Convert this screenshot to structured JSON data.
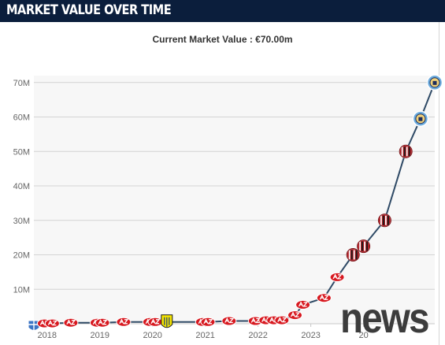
{
  "header": {
    "title": "MARKET VALUE OVER TIME"
  },
  "colors": {
    "header_bg": "#0b1e3c",
    "line": "#2f4a66",
    "plot_bg": "#f7f7f7",
    "grid": "#d4d4d4",
    "az_red": "#d71920",
    "milan_red": "#b01c23",
    "city_blue": "#6cabdd"
  },
  "watermark": "news",
  "chart_data": {
    "type": "line",
    "title": "Current Market Value : €70.00m",
    "xlabel": "",
    "ylabel": "",
    "x_tick_labels": [
      "2018",
      "2019",
      "2020",
      "2021",
      "2022",
      "2023",
      "20"
    ],
    "x_tick_years": [
      2018,
      2019,
      2020,
      2021,
      2022,
      2023,
      2024
    ],
    "y_tick_labels": [
      "10M",
      "20M",
      "30M",
      "40M",
      "50M",
      "60M",
      "70M"
    ],
    "y_ticks": [
      10,
      20,
      30,
      40,
      50,
      60,
      70
    ],
    "ylim": [
      0,
      72
    ],
    "xlim": [
      2017.75,
      2025.1
    ],
    "grid": true,
    "series": [
      {
        "values": [
          {
            "x": 2017.75,
            "y": 0.0,
            "club": "pec-zwolle"
          },
          {
            "x": 2017.95,
            "y": 0.1,
            "club": "az-alkmaar"
          },
          {
            "x": 2018.1,
            "y": 0.1,
            "club": "az-alkmaar"
          },
          {
            "x": 2018.45,
            "y": 0.3,
            "club": "az-alkmaar"
          },
          {
            "x": 2018.95,
            "y": 0.3,
            "club": "az-alkmaar"
          },
          {
            "x": 2019.05,
            "y": 0.3,
            "club": "az-alkmaar"
          },
          {
            "x": 2019.45,
            "y": 0.5,
            "club": "az-alkmaar"
          },
          {
            "x": 2019.95,
            "y": 0.5,
            "club": "az-alkmaar"
          },
          {
            "x": 2020.05,
            "y": 0.5,
            "club": "az-alkmaar"
          },
          {
            "x": 2020.27,
            "y": 0.5,
            "club": "rkc-waalwijk"
          },
          {
            "x": 2020.95,
            "y": 0.5,
            "club": "az-alkmaar"
          },
          {
            "x": 2021.05,
            "y": 0.5,
            "club": "az-alkmaar"
          },
          {
            "x": 2021.45,
            "y": 0.8,
            "club": "az-alkmaar"
          },
          {
            "x": 2021.95,
            "y": 0.8,
            "club": "az-alkmaar"
          },
          {
            "x": 2022.15,
            "y": 1.0,
            "club": "az-alkmaar"
          },
          {
            "x": 2022.3,
            "y": 1.0,
            "club": "az-alkmaar"
          },
          {
            "x": 2022.45,
            "y": 1.0,
            "club": "az-alkmaar"
          },
          {
            "x": 2022.7,
            "y": 2.5,
            "club": "az-alkmaar"
          },
          {
            "x": 2022.85,
            "y": 5.5,
            "club": "az-alkmaar"
          },
          {
            "x": 2023.25,
            "y": 7.5,
            "club": "az-alkmaar"
          },
          {
            "x": 2023.5,
            "y": 13.5,
            "club": "az-alkmaar"
          },
          {
            "x": 2023.8,
            "y": 20.0,
            "club": "ac-milan"
          },
          {
            "x": 2024.0,
            "y": 22.5,
            "club": "ac-milan"
          },
          {
            "x": 2024.4,
            "y": 30.0,
            "club": "ac-milan"
          },
          {
            "x": 2024.8,
            "y": 50.0,
            "club": "ac-milan"
          },
          {
            "x": 2025.08,
            "y": 59.5,
            "club": "manchester-city"
          },
          {
            "x": 2025.35,
            "y": 70.0,
            "club": "manchester-city"
          }
        ]
      }
    ]
  }
}
